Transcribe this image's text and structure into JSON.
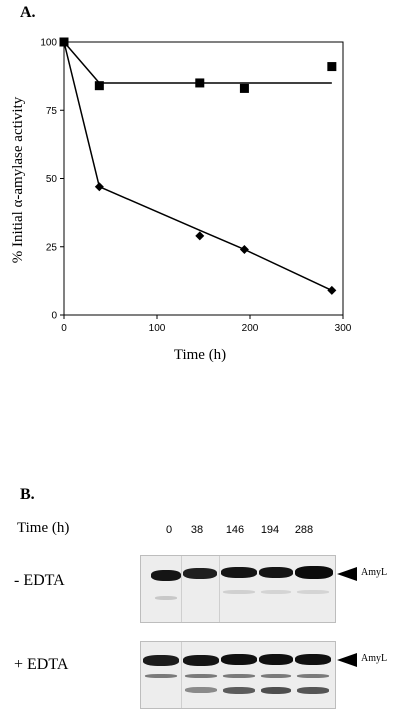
{
  "panel_a": {
    "label": "A."
  },
  "panel_b": {
    "label": "B."
  },
  "chart_data": {
    "type": "line",
    "xlabel": "Time (h)",
    "ylabel": "% Initial α-amylase activity",
    "xlim": [
      0,
      300
    ],
    "ylim": [
      0,
      100
    ],
    "x_ticks": [
      0,
      100,
      200,
      300
    ],
    "y_ticks": [
      0,
      25,
      50,
      75,
      100
    ],
    "grid": false,
    "series": [
      {
        "marker": "square",
        "x": [
          0,
          38,
          146,
          194,
          288
        ],
        "y": [
          100,
          84,
          85,
          83,
          91
        ],
        "fit": {
          "x": [
            0,
            38,
            288
          ],
          "y": [
            100,
            85,
            85
          ]
        }
      },
      {
        "marker": "diamond",
        "x": [
          0,
          38,
          146,
          194,
          288
        ],
        "y": [
          100,
          47,
          29,
          24,
          9
        ],
        "fit": {
          "x": [
            0,
            38,
            146,
            194,
            288
          ],
          "y": [
            100,
            47,
            31,
            24,
            9
          ]
        }
      }
    ]
  },
  "blot": {
    "time_label": "Time (h)",
    "lanes": [
      "0",
      "38",
      "146",
      "194",
      "288"
    ],
    "rows": [
      {
        "label": "- EDTA",
        "band_label": "AmyL"
      },
      {
        "label": "+ EDTA",
        "band_label": "AmyL"
      }
    ]
  }
}
